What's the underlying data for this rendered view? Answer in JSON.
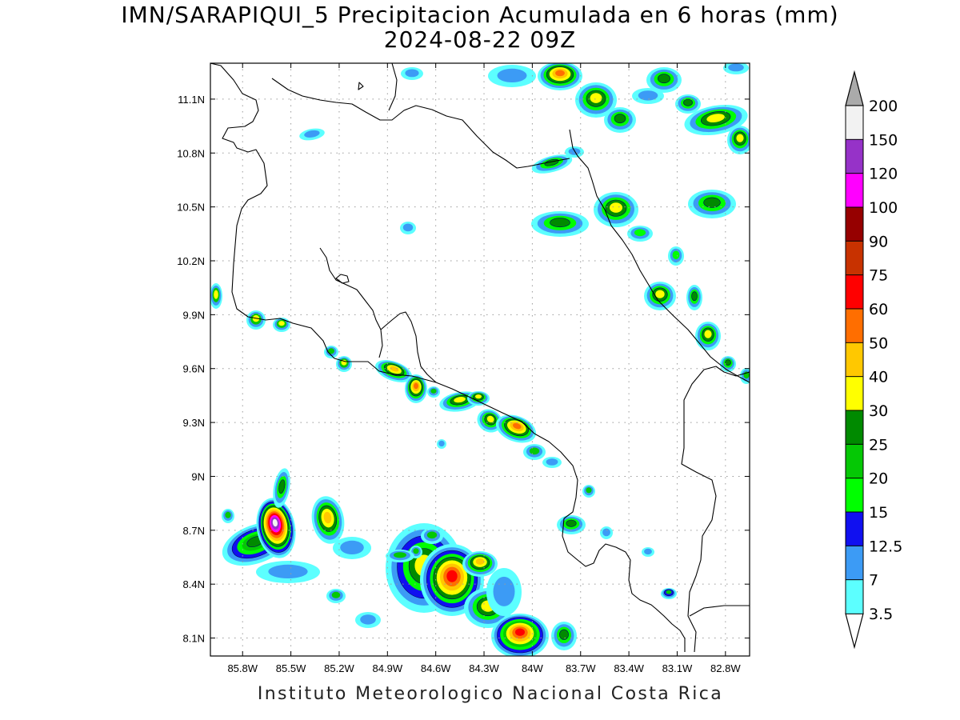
{
  "title": "IMN/SARAPIQUI_5 Precipitacion Acumulada en 6 horas (mm)",
  "subtitle": "2024-08-22 09Z",
  "footer": "Instituto Meteorologico Nacional Costa Rica",
  "map": {
    "extent": {
      "lon_min": -86.0,
      "lon_max": -82.65,
      "lat_min": 8.0,
      "lat_max": 11.3
    },
    "grid": true,
    "x_ticks": [
      {
        "lon": -85.8,
        "label": "85.8W"
      },
      {
        "lon": -85.5,
        "label": "85.5W"
      },
      {
        "lon": -85.2,
        "label": "85.2W"
      },
      {
        "lon": -84.9,
        "label": "84.9W"
      },
      {
        "lon": -84.6,
        "label": "84.6W"
      },
      {
        "lon": -84.3,
        "label": "84.3W"
      },
      {
        "lon": -84.0,
        "label": "84W"
      },
      {
        "lon": -83.7,
        "label": "83.7W"
      },
      {
        "lon": -83.4,
        "label": "83.4W"
      },
      {
        "lon": -83.1,
        "label": "83.1W"
      },
      {
        "lon": -82.8,
        "label": "82.8W"
      }
    ],
    "y_ticks": [
      {
        "lat": 11.1,
        "label": "11.1N"
      },
      {
        "lat": 10.8,
        "label": "10.8N"
      },
      {
        "lat": 10.5,
        "label": "10.5N"
      },
      {
        "lat": 10.2,
        "label": "10.2N"
      },
      {
        "lat": 9.9,
        "label": "9.9N"
      },
      {
        "lat": 9.6,
        "label": "9.6N"
      },
      {
        "lat": 9.3,
        "label": "9.3N"
      },
      {
        "lat": 9.0,
        "label": "9N"
      },
      {
        "lat": 8.7,
        "label": "8.7N"
      },
      {
        "lat": 8.4,
        "label": "8.4N"
      },
      {
        "lat": 8.1,
        "label": "8.1N"
      }
    ]
  },
  "colorbar": {
    "levels": [
      "3.5",
      "7",
      "12.5",
      "15",
      "20",
      "25",
      "30",
      "40",
      "50",
      "60",
      "75",
      "90",
      "100",
      "120",
      "150",
      "200"
    ],
    "colors": [
      "#5cffff",
      "#3c9bf5",
      "#1010f0",
      "#00ff00",
      "#05c805",
      "#008a00",
      "#ffff00",
      "#ffc800",
      "#ff6e00",
      "#ff0000",
      "#c83200",
      "#960000",
      "#ff00ff",
      "#9632c8",
      "#f2f2f2"
    ],
    "top_cap_color": "#aaaaaa",
    "bottom_cap_color": "#ffffff"
  },
  "chart_data": {
    "type": "heatmap",
    "variable": "Precipitacion Acumulada en 6 horas (mm)",
    "cells": [
      {
        "lon": -85.5,
        "lat": 8.72,
        "peak": "150"
      },
      {
        "lon": -85.57,
        "lat": 8.62,
        "peak": "50"
      },
      {
        "lon": -85.15,
        "lat": 8.64,
        "peak": "60"
      },
      {
        "lon": -84.0,
        "lat": 8.1,
        "peak": "75"
      },
      {
        "lon": -84.4,
        "lat": 8.5,
        "peak": "60"
      },
      {
        "lon": -84.2,
        "lat": 8.5,
        "peak": "50"
      },
      {
        "lon": -84.4,
        "lat": 8.28,
        "peak": "40"
      },
      {
        "lon": -84.18,
        "lat": 8.1,
        "peak": "40"
      },
      {
        "lon": -84.75,
        "lat": 9.57,
        "peak": "60"
      },
      {
        "lon": -84.57,
        "lat": 9.52,
        "peak": "50"
      },
      {
        "lon": -84.45,
        "lat": 9.44,
        "peak": "40"
      },
      {
        "lon": -84.3,
        "lat": 9.45,
        "peak": "40"
      },
      {
        "lon": -84.01,
        "lat": 9.27,
        "peak": "60"
      },
      {
        "lon": -84.23,
        "lat": 9.3,
        "peak": "40"
      },
      {
        "lon": -85.8,
        "lat": 9.88,
        "peak": "40"
      },
      {
        "lon": -85.55,
        "lat": 9.84,
        "peak": "40"
      },
      {
        "lon": -85.18,
        "lat": 9.64,
        "peak": "40"
      },
      {
        "lon": -83.96,
        "lat": 11.18,
        "peak": "50"
      },
      {
        "lon": -83.74,
        "lat": 11.08,
        "peak": "40"
      },
      {
        "lon": -83.43,
        "lat": 10.53,
        "peak": "40"
      },
      {
        "lon": -83.1,
        "lat": 10.02,
        "peak": "40"
      },
      {
        "lon": -82.9,
        "lat": 9.78,
        "peak": "40"
      },
      {
        "lon": -82.88,
        "lat": 10.98,
        "peak": "40"
      },
      {
        "lon": -82.75,
        "lat": 10.9,
        "peak": "40"
      },
      {
        "lon": -85.36,
        "lat": 8.58,
        "peak": "30"
      },
      {
        "lon": -83.79,
        "lat": 8.74,
        "peak": "30"
      }
    ]
  }
}
